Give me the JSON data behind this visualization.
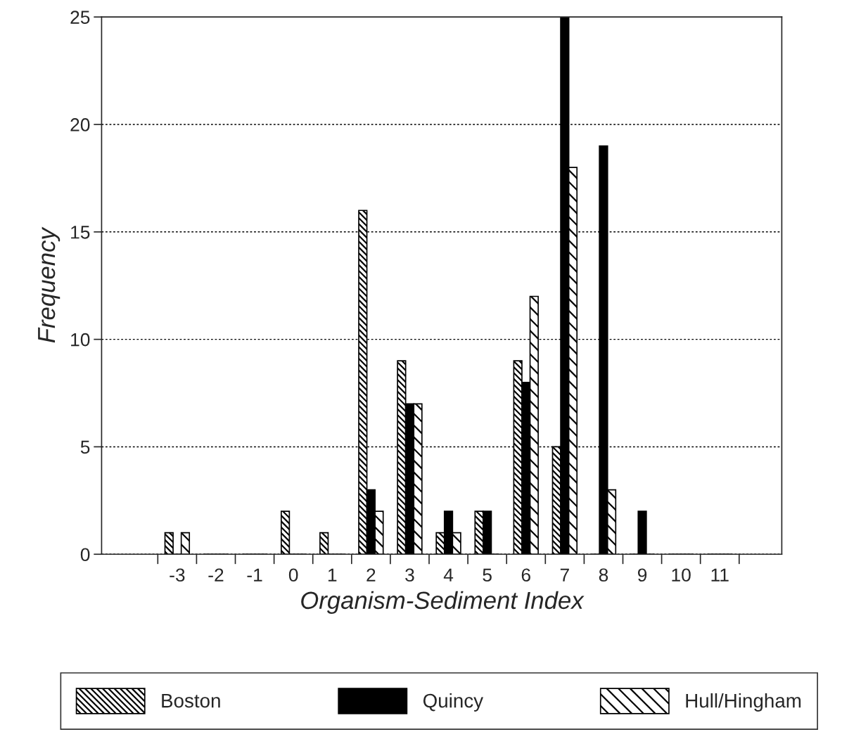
{
  "chart_data": {
    "type": "bar",
    "xlabel": "Organism-Sediment Index",
    "ylabel": "Frequency",
    "categories": [
      "-3",
      "-2",
      "-1",
      "0",
      "1",
      "2",
      "3",
      "4",
      "5",
      "6",
      "7",
      "8",
      "9",
      "10",
      "11"
    ],
    "series": [
      {
        "name": "Boston",
        "color": "#000000",
        "values": [
          1,
          0,
          0,
          2,
          1,
          16,
          9,
          1,
          2,
          9,
          5,
          0,
          0,
          0,
          0
        ]
      },
      {
        "name": "Quincy",
        "color": "#000000",
        "values": [
          0,
          0,
          0,
          0,
          0,
          3,
          7,
          2,
          2,
          8,
          25,
          19,
          2,
          0,
          0
        ]
      },
      {
        "name": "Hull/Hingham",
        "color": "#000000",
        "values": [
          1,
          0,
          0,
          0,
          0,
          2,
          7,
          1,
          0,
          12,
          18,
          3,
          0,
          0,
          0
        ]
      }
    ],
    "ylim": [
      0,
      25
    ],
    "yticks": [
      0,
      5,
      10,
      15,
      20,
      25
    ],
    "grid": "y",
    "legend": "bottom"
  }
}
